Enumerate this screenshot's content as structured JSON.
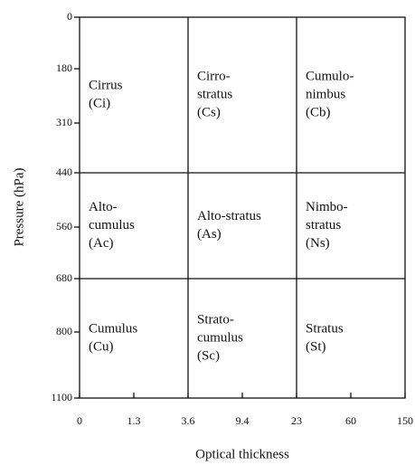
{
  "axes": {
    "x_title": "Optical thickness",
    "y_title": "Pressure (hPa)",
    "x_ticks": [
      "0",
      "1.3",
      "3.6",
      "9.4",
      "23",
      "60",
      "150"
    ],
    "y_ticks": [
      "0",
      "180",
      "310",
      "440",
      "560",
      "680",
      "800",
      "1100"
    ]
  },
  "cells": [
    {
      "lines": [
        "Cirrus",
        "(Ci)"
      ]
    },
    {
      "lines": [
        "Cirro-",
        "stratus",
        "(Cs)"
      ]
    },
    {
      "lines": [
        "Cumulo-",
        "nimbus",
        "(Cb)"
      ]
    },
    {
      "lines": [
        "Alto-",
        "cumulus",
        "(Ac)"
      ]
    },
    {
      "lines": [
        "Alto-stratus",
        "(As)"
      ]
    },
    {
      "lines": [
        "Nimbo-",
        "stratus",
        "(Ns)"
      ]
    },
    {
      "lines": [
        "Cumulus",
        "(Cu)"
      ]
    },
    {
      "lines": [
        "Strato-",
        "cumulus",
        "(Sc)"
      ]
    },
    {
      "lines": [
        "Stratus",
        "(St)"
      ]
    }
  ]
}
